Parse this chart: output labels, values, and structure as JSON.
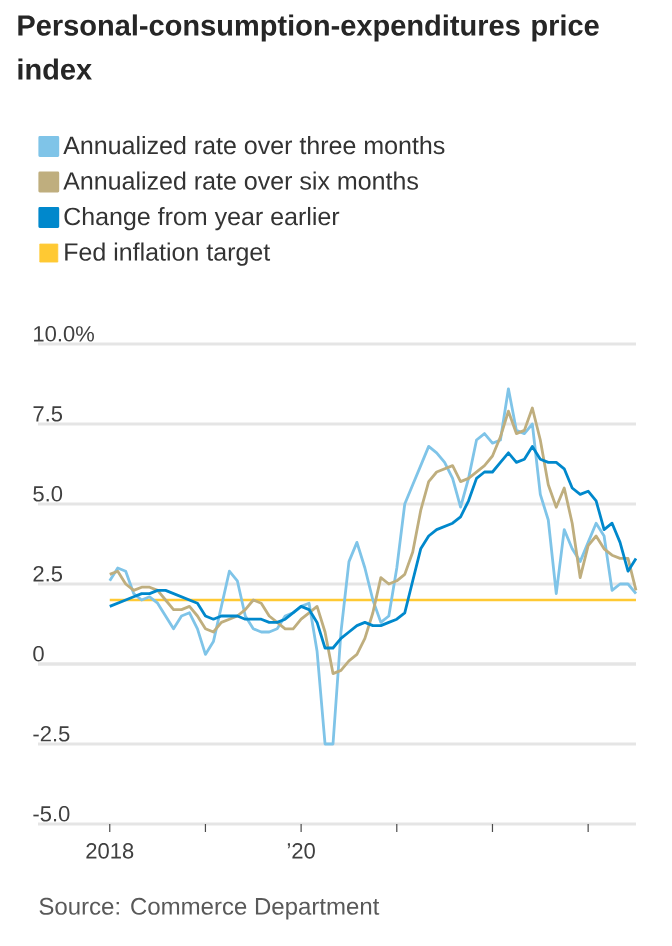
{
  "chart_data": {
    "type": "line",
    "title": "Personal-consumption-expenditures price index",
    "annotations": [
      "Source: Commerce Department"
    ],
    "x": [
      "2018-01",
      "2018-02",
      "2018-03",
      "2018-04",
      "2018-05",
      "2018-06",
      "2018-07",
      "2018-08",
      "2018-09",
      "2018-10",
      "2018-11",
      "2018-12",
      "2019-01",
      "2019-02",
      "2019-03",
      "2019-04",
      "2019-05",
      "2019-06",
      "2019-07",
      "2019-08",
      "2019-09",
      "2019-10",
      "2019-11",
      "2019-12",
      "2020-01",
      "2020-02",
      "2020-03",
      "2020-04",
      "2020-05",
      "2020-06",
      "2020-07",
      "2020-08",
      "2020-09",
      "2020-10",
      "2020-11",
      "2020-12",
      "2021-01",
      "2021-02",
      "2021-03",
      "2021-04",
      "2021-05",
      "2021-06",
      "2021-07",
      "2021-08",
      "2021-09",
      "2021-10",
      "2021-11",
      "2021-12",
      "2022-01",
      "2022-02",
      "2022-03",
      "2022-04",
      "2022-05",
      "2022-06",
      "2022-07",
      "2022-08",
      "2022-09",
      "2022-10",
      "2022-11",
      "2022-12",
      "2023-01",
      "2023-02",
      "2023-03",
      "2023-04",
      "2023-05",
      "2023-06",
      "2023-07"
    ],
    "series": [
      {
        "name": "Annualized rate over three months",
        "color": "#7fc4e8",
        "values": [
          2.6,
          3.0,
          2.9,
          2.2,
          2.0,
          2.1,
          1.9,
          1.5,
          1.1,
          1.5,
          1.6,
          1.1,
          0.3,
          0.7,
          1.8,
          2.9,
          2.6,
          1.5,
          1.1,
          1.0,
          1.0,
          1.1,
          1.5,
          1.6,
          1.8,
          1.9,
          0.4,
          -2.5,
          -2.5,
          1.0,
          3.2,
          3.8,
          3.0,
          2.0,
          1.3,
          1.5,
          3.0,
          5.0,
          5.6,
          6.2,
          6.8,
          6.6,
          6.3,
          5.8,
          4.9,
          5.8,
          7.0,
          7.2,
          6.9,
          7.0,
          8.6,
          7.3,
          7.2,
          7.5,
          5.3,
          4.5,
          2.2,
          4.2,
          3.6,
          3.2,
          3.8,
          4.4,
          4.0,
          2.3,
          2.5,
          2.5,
          2.2
        ]
      },
      {
        "name": "Annualized rate over six months",
        "color": "#bfae7e",
        "values": [
          2.8,
          2.9,
          2.5,
          2.3,
          2.4,
          2.4,
          2.3,
          2.0,
          1.7,
          1.7,
          1.8,
          1.5,
          1.1,
          1.0,
          1.3,
          1.4,
          1.5,
          1.7,
          2.0,
          1.9,
          1.5,
          1.3,
          1.1,
          1.1,
          1.4,
          1.6,
          1.8,
          1.0,
          -0.3,
          -0.2,
          0.1,
          0.3,
          0.8,
          1.6,
          2.7,
          2.5,
          2.6,
          2.8,
          3.5,
          4.8,
          5.7,
          6.0,
          6.1,
          6.2,
          5.7,
          5.8,
          6.0,
          6.2,
          6.5,
          7.1,
          7.9,
          7.2,
          7.3,
          8.0,
          7.0,
          5.6,
          4.9,
          5.5,
          4.4,
          2.7,
          3.7,
          4.0,
          3.6,
          3.4,
          3.3,
          3.3,
          2.3
        ]
      },
      {
        "name": "Change from year earlier",
        "color": "#0088cc",
        "values": [
          1.8,
          1.9,
          2.0,
          2.1,
          2.2,
          2.2,
          2.3,
          2.3,
          2.2,
          2.1,
          2.0,
          1.9,
          1.5,
          1.4,
          1.5,
          1.5,
          1.5,
          1.4,
          1.4,
          1.4,
          1.3,
          1.3,
          1.4,
          1.6,
          1.8,
          1.7,
          1.3,
          0.5,
          0.5,
          0.8,
          1.0,
          1.2,
          1.3,
          1.2,
          1.2,
          1.3,
          1.4,
          1.6,
          2.6,
          3.6,
          4.0,
          4.2,
          4.3,
          4.4,
          4.6,
          5.1,
          5.8,
          6.0,
          6.0,
          6.3,
          6.6,
          6.3,
          6.4,
          6.8,
          6.4,
          6.3,
          6.3,
          6.1,
          5.5,
          5.3,
          5.4,
          5.1,
          4.2,
          4.4,
          3.8,
          2.9,
          3.3
        ]
      }
    ],
    "ref_lines": [
      {
        "axis": "y",
        "value": 2,
        "label": "Fed inflation target",
        "color": "#ffc933"
      }
    ],
    "xlim": [
      "2017-04",
      "2023-07"
    ],
    "xticks": [
      {
        "value": "2018-01",
        "label": "2018"
      },
      {
        "value": "2019-01",
        "label": null
      },
      {
        "value": "2020-01",
        "label": "’20"
      },
      {
        "value": "2021-01",
        "label": null
      },
      {
        "value": "2022-01",
        "label": null
      },
      {
        "value": "2023-01",
        "label": null
      }
    ],
    "ylim": [
      -5,
      10
    ],
    "yticks": [
      {
        "value": 10,
        "label": "10.0%"
      },
      {
        "value": 7.5,
        "label": "7.5"
      },
      {
        "value": 5,
        "label": "5.0"
      },
      {
        "value": 2.5,
        "label": "2.5"
      },
      {
        "value": 0,
        "label": "0"
      },
      {
        "value": -2.5,
        "label": "-2.5"
      },
      {
        "value": -5,
        "label": "-5.0"
      }
    ],
    "grid": "y",
    "legend": "top left"
  }
}
